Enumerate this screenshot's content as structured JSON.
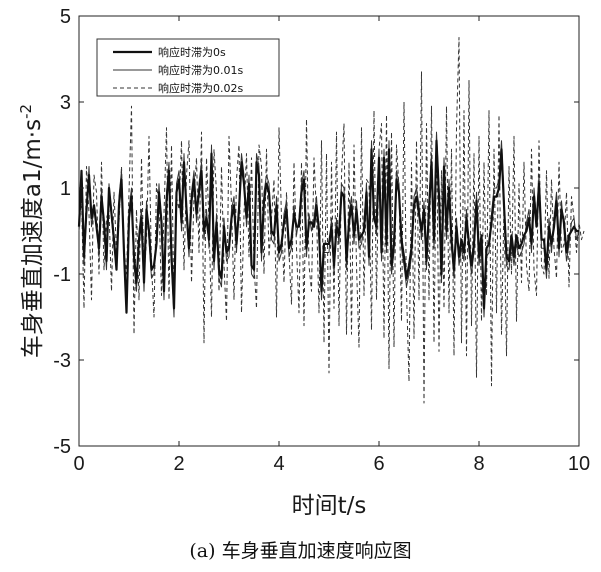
{
  "chart_data": {
    "type": "line",
    "title": "",
    "xlabel": "时间t/s",
    "ylabel_main": "车身垂直加速度a1/m·s",
    "ylabel_sup": "-2",
    "xlim": [
      0,
      10
    ],
    "ylim": [
      -5,
      5
    ],
    "xticks": [
      0,
      2,
      4,
      6,
      8,
      10
    ],
    "yticks": [
      -5,
      -3,
      -1,
      1,
      3,
      5
    ],
    "grid": false,
    "legend_position": "top-left",
    "x_step": 0.05,
    "series": [
      {
        "name": "响应时滞为0s",
        "style": "solid-thick",
        "color": "#111111",
        "values": [
          0.1,
          1.4,
          -0.6,
          0.5,
          1.3,
          0.3,
          0.6,
          0.1,
          -0.4,
          0.8,
          0.2,
          -0.7,
          1.0,
          0.4,
          -0.2,
          -0.9,
          0.6,
          1.2,
          -0.5,
          -1.9,
          0.3,
          0.8,
          -0.6,
          -1.2,
          -0.2,
          0.3,
          -1.2,
          0.5,
          0.0,
          -0.9,
          -0.8,
          -0.3,
          0.9,
          0.2,
          -1.4,
          0.7,
          1.4,
          -0.6,
          -1.8,
          0.9,
          1.2,
          0.2,
          1.6,
          0.5,
          -0.4,
          0.7,
          1.2,
          0.4,
          0.9,
          1.4,
          0.0,
          0.3,
          -0.2,
          1.8,
          -0.7,
          0.2,
          -0.9,
          -1.1,
          0.1,
          -0.5,
          -0.4,
          0.3,
          0.6,
          -0.3,
          0.5,
          1.6,
          1.1,
          0.3,
          1.1,
          -0.8,
          -0.9,
          1.6,
          1.3,
          -0.5,
          0.7,
          1.1,
          0.9,
          0.0,
          -0.1,
          0.6,
          -0.5,
          -0.3,
          0.2,
          0.5,
          -0.4,
          -0.2,
          0.4,
          0.1,
          0.1,
          0.9,
          1.2,
          -0.4,
          0.2,
          0.2,
          0.1,
          0.6,
          0.0,
          -1.4,
          -0.3,
          -0.3,
          -0.3,
          0.1,
          -0.8,
          0.1,
          -0.1,
          0.9,
          0.8,
          -0.7,
          0.2,
          0.6,
          -0.1,
          0.5,
          -0.2,
          -0.1,
          0.0,
          0.9,
          -0.6,
          1.9,
          0.3,
          0.1,
          1.7,
          -0.5,
          1.7,
          -0.3,
          1.9,
          -0.8,
          -0.3,
          1.2,
          0.9,
          -0.2,
          -0.6,
          -1.1,
          -0.8,
          -0.4,
          0.6,
          0.8,
          0.4,
          0.0,
          0.5,
          -0.7,
          0.5,
          1.6,
          -0.2,
          2.1,
          0.8,
          -1.0,
          1.5,
          0.0,
          1.0,
          -0.2,
          -0.9,
          0.1,
          -0.6,
          -0.2,
          -0.5,
          0.3,
          -0.3,
          -0.8,
          -0.3,
          0.7,
          -0.6,
          -0.1,
          -1.8,
          -0.4,
          -0.3,
          0.2,
          0.8,
          0.8,
          1.0,
          1.9,
          0.6,
          -0.6,
          -0.7,
          -0.1,
          -0.6,
          -0.1,
          -0.4,
          -0.3,
          -0.1,
          0.0,
          0.3,
          -0.3,
          0.8,
          0.1,
          1.1,
          -0.2,
          -0.2,
          -0.9,
          0.1,
          -0.3,
          0.1,
          0.7,
          -0.4,
          0.5,
          0.2,
          -0.5,
          -0.1,
          0.0,
          0.1,
          0.0,
          0.0
        ]
      },
      {
        "name": "响应时滞为0.01s",
        "style": "solid-thin",
        "color": "#333333",
        "values": [
          0.2,
          1.3,
          -0.8,
          0.4,
          1.5,
          0.1,
          0.5,
          0.2,
          -0.6,
          1.0,
          0.0,
          -0.9,
          1.1,
          0.3,
          -0.4,
          -0.7,
          0.8,
          1.4,
          -0.7,
          -1.7,
          0.5,
          1.0,
          -0.8,
          -1.4,
          0.0,
          0.5,
          -1.4,
          0.7,
          -0.2,
          -1.1,
          -1.0,
          -0.1,
          1.1,
          0.0,
          -1.6,
          0.9,
          1.6,
          -0.8,
          -2.0,
          1.1,
          1.4,
          0.0,
          1.8,
          0.3,
          -0.6,
          0.9,
          1.4,
          0.2,
          1.1,
          1.6,
          -0.2,
          0.5,
          -0.4,
          2.0,
          -0.9,
          0.4,
          -1.1,
          -1.3,
          0.3,
          -0.7,
          -0.6,
          0.5,
          0.8,
          -0.5,
          0.7,
          1.8,
          1.3,
          0.1,
          1.3,
          -1.0,
          -1.1,
          1.8,
          1.5,
          -0.7,
          0.9,
          1.3,
          1.1,
          -0.2,
          -0.3,
          0.8,
          -0.7,
          -0.5,
          0.4,
          0.7,
          -0.6,
          -0.4,
          0.6,
          -0.1,
          0.3,
          1.1,
          1.4,
          -0.6,
          0.4,
          0.0,
          0.3,
          0.8,
          -0.2,
          -1.6,
          -0.5,
          -0.5,
          -0.5,
          0.3,
          -1.0,
          0.3,
          -0.3,
          1.1,
          1.0,
          -0.9,
          0.4,
          0.8,
          -0.3,
          0.7,
          -0.4,
          -0.3,
          0.2,
          1.1,
          -0.8,
          2.1,
          0.5,
          -0.1,
          1.9,
          -0.7,
          1.9,
          -0.5,
          2.1,
          -1.0,
          -0.5,
          1.4,
          1.1,
          -0.4,
          -0.8,
          -1.3,
          -1.0,
          -0.6,
          0.8,
          1.0,
          0.6,
          -0.2,
          0.7,
          -0.9,
          0.7,
          1.8,
          -0.4,
          2.3,
          1.0,
          -1.2,
          1.7,
          -0.2,
          1.2,
          -0.4,
          -1.1,
          0.3,
          -0.8,
          -0.4,
          -0.7,
          0.5,
          -0.5,
          -1.0,
          -0.5,
          0.9,
          -0.8,
          -0.3,
          -2.0,
          -0.6,
          -0.5,
          0.4,
          1.0,
          1.0,
          1.2,
          2.1,
          0.8,
          -0.8,
          -0.9,
          -0.3,
          -0.8,
          -0.3,
          -0.6,
          -0.5,
          -0.3,
          0.2,
          0.5,
          -0.5,
          1.0,
          0.3,
          1.3,
          -0.4,
          -0.4,
          -1.1,
          0.3,
          -0.5,
          0.3,
          0.9,
          -0.6,
          0.7,
          0.0,
          -0.7,
          -0.3,
          0.2,
          0.3,
          -0.2,
          0.0
        ]
      },
      {
        "name": "响应时滞为0.02s",
        "style": "dashed",
        "color": "#333333",
        "values": [
          0.0,
          0.8,
          -1.8,
          1.5,
          0.4,
          -1.6,
          1.3,
          0.9,
          -1.0,
          1.6,
          -0.9,
          0.3,
          0.5,
          -1.4,
          0.9,
          -0.5,
          0.2,
          1.5,
          -0.4,
          -1.0,
          0.9,
          2.9,
          -2.4,
          0.5,
          -1.6,
          1.7,
          -1.1,
          -0.2,
          2.2,
          -0.8,
          -2.0,
          1.1,
          0.6,
          -1.5,
          0.4,
          2.4,
          -1.6,
          2.0,
          -1.7,
          0.8,
          0.5,
          2.1,
          -0.9,
          1.3,
          2.1,
          -1.2,
          0.8,
          1.7,
          -0.5,
          2.3,
          -2.6,
          1.7,
          0.2,
          -2.0,
          1.9,
          0.9,
          -1.4,
          1.5,
          -0.8,
          -2.1,
          2.2,
          0.6,
          -1.6,
          1.2,
          2.0,
          -1.9,
          0.4,
          1.8,
          -0.6,
          1.7,
          -0.8,
          -1.8,
          2.0,
          1.5,
          -1.0,
          1.9,
          -0.6,
          0.3,
          1.2,
          -2.0,
          2.4,
          0.3,
          -1.2,
          0.9,
          -0.5,
          -1.7,
          1.6,
          -0.4,
          -1.9,
          1.6,
          -2.2,
          2.6,
          -0.8,
          -1.4,
          1.7,
          0.4,
          -1.9,
          2.1,
          -2.6,
          1.8,
          -3.3,
          1.6,
          -1.8,
          2.3,
          -2.2,
          1.3,
          2.5,
          -2.4,
          1.6,
          -2.4,
          2.0,
          -0.8,
          -2.7,
          2.4,
          -1.5,
          1.2,
          1.1,
          -2.3,
          2.8,
          -1.6,
          1.9,
          2.5,
          -2.5,
          2.7,
          -3.2,
          2.3,
          -2.7,
          2.0,
          1.0,
          -2.1,
          3.0,
          -1.4,
          -3.5,
          1.6,
          -2.5,
          2.1,
          -1.6,
          3.7,
          -4.0,
          2.5,
          -1.6,
          2.9,
          -2.6,
          2.3,
          -2.8,
          1.4,
          -1.8,
          2.9,
          -1.9,
          1.9,
          -2.9,
          2.4,
          4.5,
          -2.6,
          2.8,
          -2.9,
          3.5,
          -2.2,
          1.8,
          -3.4,
          2.2,
          -2.1,
          1.6,
          -1.5,
          2.8,
          -3.6,
          1.9,
          -1.9,
          2.7,
          -2.4,
          0.6,
          -2.9,
          1.5,
          -1.0,
          2.2,
          -2.1,
          1.1,
          -1.2,
          1.6,
          -0.8,
          -1.4,
          1.9,
          -0.9,
          -1.5,
          2.1,
          -0.8,
          -1.0,
          1.4,
          -1.1,
          1.2,
          -0.4,
          -1.1,
          1.6,
          -0.5,
          -0.3,
          0.9,
          -1.3,
          0.8,
          0.3,
          -0.5,
          0.2,
          -0.2,
          0.0
        ]
      }
    ]
  },
  "caption": "(a) 车身垂直加速度响应图"
}
